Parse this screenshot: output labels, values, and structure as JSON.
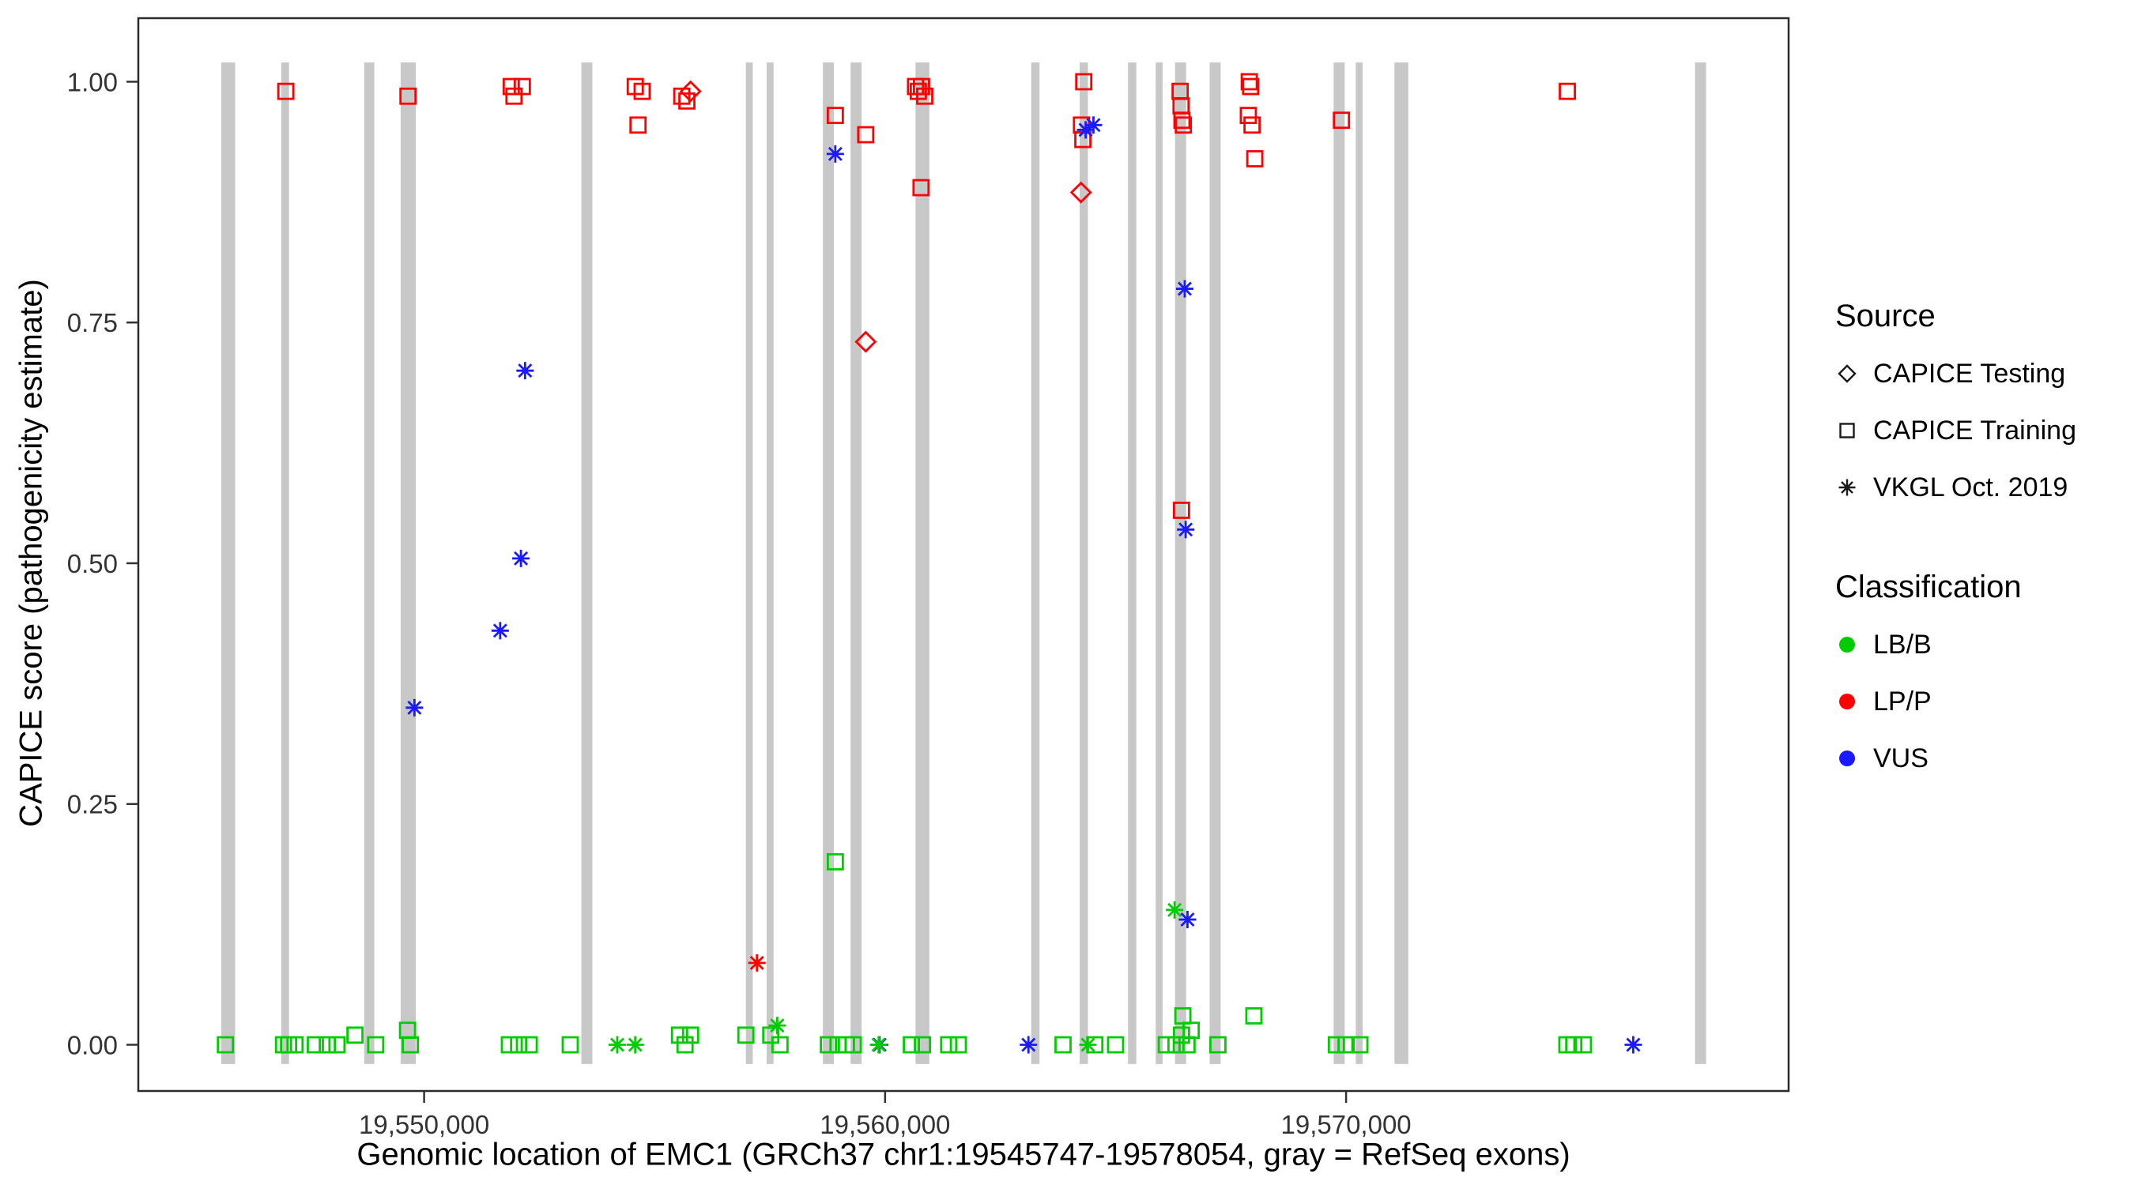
{
  "figure": {
    "xlabel": "Genomic location of EMC1 (GRCh37 chr1:19545747-19578054, gray = RefSeq exons)",
    "ylabel": "CAPICE score (pathogenicity estimate)"
  },
  "legend": {
    "source": {
      "title": "Source",
      "items": [
        {
          "label": "CAPICE Testing",
          "symbol": "diamond"
        },
        {
          "label": "CAPICE Training",
          "symbol": "square"
        },
        {
          "label": "VKGL Oct. 2019",
          "symbol": "asterisk"
        }
      ]
    },
    "classification": {
      "title": "Classification",
      "items": [
        {
          "label": "LB/B",
          "color": "#00CC00"
        },
        {
          "label": "LP/P",
          "color": "#FF0000"
        },
        {
          "label": "VUS",
          "color": "#1A1AFF"
        }
      ]
    }
  },
  "chart_data": {
    "type": "scatter",
    "title": "",
    "xlabel": "Genomic location of EMC1 (GRCh37 chr1:19545747-19578054, gray = RefSeq exons)",
    "ylabel": "CAPICE score (pathogenicity estimate)",
    "grid": false,
    "legend_position": "right",
    "xlim": [
      19543800,
      19579600
    ],
    "ylim": [
      -0.048,
      1.066
    ],
    "x_ticks": [
      {
        "value": 19550000,
        "label": "19,550,000"
      },
      {
        "value": 19560000,
        "label": "19,560,000"
      },
      {
        "value": 19570000,
        "label": "19,570,000"
      }
    ],
    "y_ticks": [
      {
        "value": 0.0,
        "label": "0.00"
      },
      {
        "value": 0.25,
        "label": "0.25"
      },
      {
        "value": 0.5,
        "label": "0.50"
      },
      {
        "value": 0.75,
        "label": "0.75"
      },
      {
        "value": 1.0,
        "label": "1.00"
      }
    ],
    "exon_color": "#C8C8C8",
    "exon_y_span": [
      -0.02,
      1.02
    ],
    "colors": {
      "LB/B": "#00CC00",
      "LP/P": "#FF0000",
      "VUS": "#1A1AFF"
    },
    "shapes": {
      "testing": "diamond",
      "training": "square",
      "vkgl": "asterisk"
    },
    "source_labels": {
      "testing": "CAPICE Testing",
      "training": "CAPICE Training",
      "vkgl": "VKGL Oct. 2019"
    },
    "exons": [
      [
        19545600,
        19545900
      ],
      [
        19546900,
        19547070
      ],
      [
        19548700,
        19548920
      ],
      [
        19549490,
        19549820
      ],
      [
        19553410,
        19553650
      ],
      [
        19556980,
        19557130
      ],
      [
        19557430,
        19557580
      ],
      [
        19558650,
        19558890
      ],
      [
        19559250,
        19559490
      ],
      [
        19560660,
        19560960
      ],
      [
        19563170,
        19563350
      ],
      [
        19564220,
        19564400
      ],
      [
        19565270,
        19565450
      ],
      [
        19565870,
        19566020
      ],
      [
        19566290,
        19566530
      ],
      [
        19567040,
        19567280
      ],
      [
        19569730,
        19569970
      ],
      [
        19570210,
        19570360
      ],
      [
        19571050,
        19571350
      ],
      [
        19577570,
        19577810
      ]
    ],
    "point_format": [
      "genomic_position",
      "capice_score",
      "source",
      "classification"
    ],
    "points": [
      [
        19547000,
        0.99,
        "training",
        "LP/P"
      ],
      [
        19549650,
        0.985,
        "training",
        "LP/P"
      ],
      [
        19551890,
        0.995,
        "training",
        "LP/P"
      ],
      [
        19552130,
        0.995,
        "training",
        "LP/P"
      ],
      [
        19551950,
        0.985,
        "training",
        "LP/P"
      ],
      [
        19554580,
        0.995,
        "training",
        "LP/P"
      ],
      [
        19554730,
        0.99,
        "training",
        "LP/P"
      ],
      [
        19554640,
        0.955,
        "training",
        "LP/P"
      ],
      [
        19555590,
        0.985,
        "training",
        "LP/P"
      ],
      [
        19555700,
        0.98,
        "training",
        "LP/P"
      ],
      [
        19558920,
        0.965,
        "training",
        "LP/P"
      ],
      [
        19559580,
        0.945,
        "training",
        "LP/P"
      ],
      [
        19560660,
        0.995,
        "training",
        "LP/P"
      ],
      [
        19560720,
        0.99,
        "training",
        "LP/P"
      ],
      [
        19560790,
        0.995,
        "training",
        "LP/P"
      ],
      [
        19560860,
        0.985,
        "training",
        "LP/P"
      ],
      [
        19560780,
        0.89,
        "training",
        "LP/P"
      ],
      [
        19564310,
        1.0,
        "training",
        "LP/P"
      ],
      [
        19564260,
        0.955,
        "training",
        "LP/P"
      ],
      [
        19564290,
        0.94,
        "training",
        "LP/P"
      ],
      [
        19566400,
        0.99,
        "training",
        "LP/P"
      ],
      [
        19566420,
        0.975,
        "training",
        "LP/P"
      ],
      [
        19566440,
        0.96,
        "training",
        "LP/P"
      ],
      [
        19566470,
        0.955,
        "training",
        "LP/P"
      ],
      [
        19566430,
        0.555,
        "training",
        "LP/P"
      ],
      [
        19567900,
        1.0,
        "training",
        "LP/P"
      ],
      [
        19567930,
        0.995,
        "training",
        "LP/P"
      ],
      [
        19567880,
        0.965,
        "training",
        "LP/P"
      ],
      [
        19567960,
        0.955,
        "training",
        "LP/P"
      ],
      [
        19568020,
        0.92,
        "training",
        "LP/P"
      ],
      [
        19569900,
        0.96,
        "training",
        "LP/P"
      ],
      [
        19574800,
        0.99,
        "training",
        "LP/P"
      ],
      [
        19555780,
        0.99,
        "testing",
        "LP/P"
      ],
      [
        19559580,
        0.73,
        "testing",
        "LP/P"
      ],
      [
        19564250,
        0.885,
        "testing",
        "LP/P"
      ],
      [
        19557220,
        0.085,
        "vkgl",
        "LP/P"
      ],
      [
        19549790,
        0.35,
        "vkgl",
        "VUS"
      ],
      [
        19551650,
        0.43,
        "vkgl",
        "VUS"
      ],
      [
        19552100,
        0.505,
        "vkgl",
        "VUS"
      ],
      [
        19552190,
        0.7,
        "vkgl",
        "VUS"
      ],
      [
        19558920,
        0.925,
        "vkgl",
        "VUS"
      ],
      [
        19564350,
        0.95,
        "vkgl",
        "VUS"
      ],
      [
        19564520,
        0.955,
        "vkgl",
        "VUS"
      ],
      [
        19566500,
        0.785,
        "vkgl",
        "VUS"
      ],
      [
        19566520,
        0.535,
        "vkgl",
        "VUS"
      ],
      [
        19566560,
        0.13,
        "vkgl",
        "VUS"
      ],
      [
        19563110,
        0.0,
        "vkgl",
        "VUS"
      ],
      [
        19559880,
        0.0,
        "vkgl",
        "VUS"
      ],
      [
        19576230,
        0.0,
        "vkgl",
        "VUS"
      ],
      [
        19554190,
        0.0,
        "vkgl",
        "LB/B"
      ],
      [
        19554580,
        0.0,
        "vkgl",
        "LB/B"
      ],
      [
        19557660,
        0.02,
        "vkgl",
        "LB/B"
      ],
      [
        19559860,
        0.0,
        "vkgl",
        "LB/B"
      ],
      [
        19564400,
        0.0,
        "vkgl",
        "LB/B"
      ],
      [
        19566280,
        0.14,
        "vkgl",
        "LB/B"
      ],
      [
        19545690,
        0.0,
        "training",
        "LB/B"
      ],
      [
        19546950,
        0.0,
        "training",
        "LB/B"
      ],
      [
        19547060,
        0.0,
        "training",
        "LB/B"
      ],
      [
        19547200,
        0.0,
        "training",
        "LB/B"
      ],
      [
        19547640,
        0.0,
        "training",
        "LB/B"
      ],
      [
        19547900,
        0.0,
        "training",
        "LB/B"
      ],
      [
        19548110,
        0.0,
        "training",
        "LB/B"
      ],
      [
        19548500,
        0.01,
        "training",
        "LB/B"
      ],
      [
        19548950,
        0.0,
        "training",
        "LB/B"
      ],
      [
        19549640,
        0.015,
        "training",
        "LB/B"
      ],
      [
        19549700,
        0.0,
        "training",
        "LB/B"
      ],
      [
        19551850,
        0.0,
        "training",
        "LB/B"
      ],
      [
        19552050,
        0.0,
        "training",
        "LB/B"
      ],
      [
        19552280,
        0.0,
        "training",
        "LB/B"
      ],
      [
        19553170,
        0.0,
        "training",
        "LB/B"
      ],
      [
        19555540,
        0.01,
        "training",
        "LB/B"
      ],
      [
        19555660,
        0.0,
        "training",
        "LB/B"
      ],
      [
        19555780,
        0.01,
        "training",
        "LB/B"
      ],
      [
        19556980,
        0.01,
        "training",
        "LB/B"
      ],
      [
        19557520,
        0.01,
        "training",
        "LB/B"
      ],
      [
        19557720,
        0.0,
        "training",
        "LB/B"
      ],
      [
        19558770,
        0.0,
        "training",
        "LB/B"
      ],
      [
        19558980,
        0.0,
        "training",
        "LB/B"
      ],
      [
        19559160,
        0.0,
        "training",
        "LB/B"
      ],
      [
        19559310,
        0.0,
        "training",
        "LB/B"
      ],
      [
        19558920,
        0.19,
        "training",
        "LB/B"
      ],
      [
        19560570,
        0.0,
        "training",
        "LB/B"
      ],
      [
        19560810,
        0.0,
        "training",
        "LB/B"
      ],
      [
        19561380,
        0.0,
        "training",
        "LB/B"
      ],
      [
        19561590,
        0.0,
        "training",
        "LB/B"
      ],
      [
        19563860,
        0.0,
        "training",
        "LB/B"
      ],
      [
        19564550,
        0.0,
        "training",
        "LB/B"
      ],
      [
        19565000,
        0.0,
        "training",
        "LB/B"
      ],
      [
        19566100,
        0.0,
        "training",
        "LB/B"
      ],
      [
        19566310,
        0.0,
        "training",
        "LB/B"
      ],
      [
        19566430,
        0.01,
        "training",
        "LB/B"
      ],
      [
        19566550,
        0.0,
        "training",
        "LB/B"
      ],
      [
        19566640,
        0.015,
        "training",
        "LB/B"
      ],
      [
        19566460,
        0.03,
        "training",
        "LB/B"
      ],
      [
        19567220,
        0.0,
        "training",
        "LB/B"
      ],
      [
        19568000,
        0.03,
        "training",
        "LB/B"
      ],
      [
        19569790,
        0.0,
        "training",
        "LB/B"
      ],
      [
        19570000,
        0.0,
        "training",
        "LB/B"
      ],
      [
        19570300,
        0.0,
        "training",
        "LB/B"
      ],
      [
        19574790,
        0.0,
        "training",
        "LB/B"
      ],
      [
        19574940,
        0.0,
        "training",
        "LB/B"
      ],
      [
        19575150,
        0.0,
        "training",
        "LB/B"
      ]
    ]
  }
}
